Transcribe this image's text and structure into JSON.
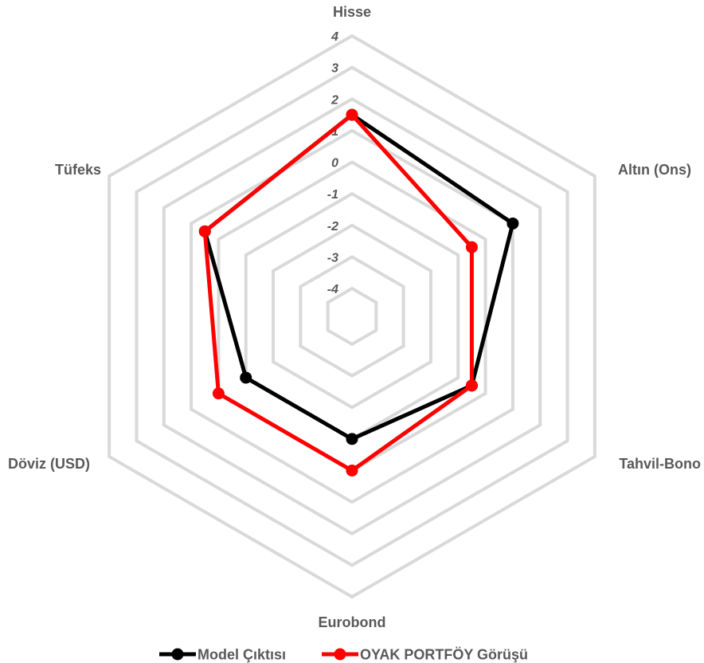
{
  "chart_data": {
    "type": "radar",
    "title": "",
    "axes": [
      "Hisse",
      "Altın (Ons)",
      "Tahvil-Bono",
      "Eurobond",
      "Döviz (USD)",
      "Tüfeks"
    ],
    "r_range": [
      -4,
      4
    ],
    "ticks": [
      "-4",
      "-3",
      "-2",
      "-1",
      "0",
      "1",
      "2",
      "3",
      "4"
    ],
    "grid": true,
    "legend_position": "bottom",
    "series": [
      {
        "name": "Model Çıktısı",
        "color": "#000000",
        "values": [
          1.5,
          1.0,
          -0.5,
          -1.0,
          -1.0,
          0.5
        ]
      },
      {
        "name": "OYAK PORTFÖY Görüşü",
        "color": "#ff0000",
        "values": [
          1.5,
          -0.5,
          -0.5,
          0.0,
          0.0,
          0.5
        ]
      }
    ]
  }
}
